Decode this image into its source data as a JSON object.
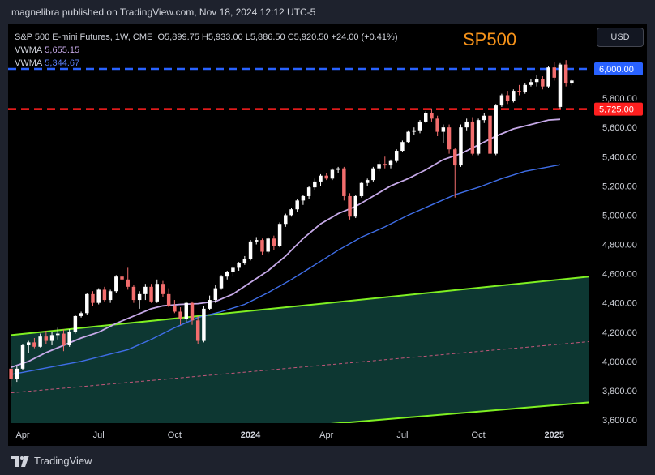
{
  "header": {
    "published": "magnelibra published on TradingView.com, Nov 18, 2024 12:12 UTC-5"
  },
  "legend": {
    "symbol_line": "S&P 500 E-mini Futures, 1W, CME",
    "ohlc": "O5,899.75  H5,933.00  L5,886.50  C5,920.50  +24.00 (+0.41%)",
    "vwma1_label": "VWMA",
    "vwma1_value": "5,655.15",
    "vwma2_label": "VWMA",
    "vwma2_value": "5,344.67"
  },
  "currency_button": "USD",
  "annotation": "SP500",
  "brand": "TradingView",
  "colors": {
    "up": "#ffffff",
    "down": "#f26d6d",
    "vwma_fast": "#c6a9e8",
    "vwma_slow": "#3f6ee8",
    "channel_line": "#7ff022",
    "channel_fill": "#0e3a35",
    "resistance": "#2962ff",
    "support": "#ff1f1f"
  },
  "chart_data": {
    "type": "candlestick",
    "title": "S&P 500 E-mini Futures, 1W, CME",
    "y_ticks": [
      3600,
      3800,
      4000,
      4200,
      4400,
      4600,
      4800,
      5000,
      5200,
      5400,
      5600,
      5800
    ],
    "y_tick_labels": [
      "3,600.00",
      "3,800.00",
      "4,000.00",
      "4,200.00",
      "4,400.00",
      "4,600.00",
      "4,800.00",
      "5,000.00",
      "5,200.00",
      "5,400.00",
      "5,600.00",
      "5,800.00"
    ],
    "ylim": [
      3590,
      6300
    ],
    "x_tick_labels": [
      "Apr",
      "Jul",
      "Oct",
      "2024",
      "Apr",
      "Jul",
      "Oct",
      "2025"
    ],
    "x_tick_weeks": [
      2,
      15,
      28,
      41,
      54,
      67,
      80,
      93
    ],
    "x_range_weeks": [
      -0.5,
      99
    ],
    "grid": false,
    "levels": [
      {
        "value": 6000,
        "label": "6,000.00",
        "color": "#2962ff"
      },
      {
        "value": 5725,
        "label": "5,725.00",
        "color": "#ff1f1f"
      }
    ],
    "channel": {
      "upper": [
        [
          0,
          4180
        ],
        [
          99,
          4580
        ]
      ],
      "middle": [
        [
          0,
          3785
        ],
        [
          99,
          4135
        ]
      ],
      "lower": [
        [
          0,
          3390
        ],
        [
          99,
          3720
        ]
      ]
    },
    "candles": [
      [
        3950,
        4010,
        3830,
        3880
      ],
      [
        3880,
        3970,
        3860,
        3950
      ],
      [
        3950,
        4120,
        3940,
        4110
      ],
      [
        4110,
        4140,
        4060,
        4130
      ],
      [
        4130,
        4160,
        4090,
        4100
      ],
      [
        4100,
        4190,
        4095,
        4170
      ],
      [
        4170,
        4210,
        4120,
        4140
      ],
      [
        4140,
        4200,
        4110,
        4180
      ],
      [
        4180,
        4230,
        4150,
        4190
      ],
      [
        4190,
        4220,
        4070,
        4110
      ],
      [
        4110,
        4220,
        4100,
        4200
      ],
      [
        4200,
        4320,
        4190,
        4310
      ],
      [
        4310,
        4340,
        4300,
        4330
      ],
      [
        4330,
        4470,
        4320,
        4460
      ],
      [
        4460,
        4480,
        4380,
        4400
      ],
      [
        4400,
        4500,
        4390,
        4490
      ],
      [
        4490,
        4510,
        4410,
        4420
      ],
      [
        4420,
        4490,
        4400,
        4480
      ],
      [
        4480,
        4590,
        4470,
        4580
      ],
      [
        4580,
        4630,
        4540,
        4560
      ],
      [
        4560,
        4640,
        4490,
        4510
      ],
      [
        4510,
        4520,
        4400,
        4420
      ],
      [
        4420,
        4480,
        4360,
        4460
      ],
      [
        4460,
        4530,
        4420,
        4510
      ],
      [
        4510,
        4530,
        4400,
        4410
      ],
      [
        4410,
        4560,
        4400,
        4530
      ],
      [
        4530,
        4550,
        4440,
        4460
      ],
      [
        4460,
        4500,
        4370,
        4380
      ],
      [
        4380,
        4420,
        4330,
        4340
      ],
      [
        4340,
        4370,
        4250,
        4290
      ],
      [
        4290,
        4410,
        4270,
        4400
      ],
      [
        4400,
        4410,
        4250,
        4280
      ],
      [
        4280,
        4310,
        4120,
        4140
      ],
      [
        4140,
        4380,
        4130,
        4360
      ],
      [
        4360,
        4450,
        4350,
        4420
      ],
      [
        4420,
        4520,
        4400,
        4500
      ],
      [
        4500,
        4590,
        4490,
        4580
      ],
      [
        4580,
        4620,
        4560,
        4610
      ],
      [
        4610,
        4650,
        4580,
        4640
      ],
      [
        4640,
        4680,
        4620,
        4670
      ],
      [
        4670,
        4720,
        4660,
        4700
      ],
      [
        4700,
        4830,
        4690,
        4820
      ],
      [
        4820,
        4850,
        4800,
        4830
      ],
      [
        4830,
        4840,
        4730,
        4750
      ],
      [
        4750,
        4850,
        4740,
        4840
      ],
      [
        4840,
        4860,
        4760,
        4790
      ],
      [
        4790,
        4950,
        4780,
        4940
      ],
      [
        4940,
        5010,
        4920,
        5000
      ],
      [
        5000,
        5050,
        4990,
        5040
      ],
      [
        5040,
        5110,
        5020,
        5100
      ],
      [
        5100,
        5140,
        5070,
        5130
      ],
      [
        5130,
        5200,
        5110,
        5190
      ],
      [
        5190,
        5250,
        5170,
        5230
      ],
      [
        5230,
        5280,
        5200,
        5270
      ],
      [
        5270,
        5290,
        5240,
        5250
      ],
      [
        5250,
        5320,
        5240,
        5310
      ],
      [
        5310,
        5330,
        5290,
        5320
      ],
      [
        5320,
        5330,
        5100,
        5130
      ],
      [
        5130,
        5150,
        4970,
        4990
      ],
      [
        4990,
        5140,
        4980,
        5130
      ],
      [
        5130,
        5230,
        5120,
        5220
      ],
      [
        5220,
        5250,
        5200,
        5240
      ],
      [
        5240,
        5330,
        5230,
        5320
      ],
      [
        5320,
        5370,
        5300,
        5350
      ],
      [
        5350,
        5400,
        5320,
        5340
      ],
      [
        5340,
        5380,
        5320,
        5370
      ],
      [
        5370,
        5450,
        5360,
        5440
      ],
      [
        5440,
        5510,
        5430,
        5500
      ],
      [
        5500,
        5580,
        5490,
        5570
      ],
      [
        5570,
        5600,
        5550,
        5580
      ],
      [
        5580,
        5650,
        5560,
        5640
      ],
      [
        5640,
        5710,
        5630,
        5700
      ],
      [
        5700,
        5730,
        5640,
        5660
      ],
      [
        5660,
        5680,
        5540,
        5570
      ],
      [
        5570,
        5620,
        5490,
        5600
      ],
      [
        5600,
        5620,
        5420,
        5450
      ],
      [
        5450,
        5460,
        5120,
        5340
      ],
      [
        5340,
        5620,
        5330,
        5600
      ],
      [
        5600,
        5660,
        5580,
        5640
      ],
      [
        5640,
        5670,
        5410,
        5420
      ],
      [
        5420,
        5660,
        5410,
        5650
      ],
      [
        5650,
        5700,
        5630,
        5680
      ],
      [
        5680,
        5700,
        5400,
        5420
      ],
      [
        5420,
        5760,
        5410,
        5750
      ],
      [
        5750,
        5830,
        5740,
        5820
      ],
      [
        5820,
        5850,
        5760,
        5780
      ],
      [
        5780,
        5860,
        5770,
        5850
      ],
      [
        5850,
        5890,
        5820,
        5840
      ],
      [
        5840,
        5900,
        5830,
        5890
      ],
      [
        5890,
        5930,
        5880,
        5910
      ],
      [
        5910,
        5960,
        5880,
        5930
      ],
      [
        5930,
        5950,
        5860,
        5880
      ],
      [
        5880,
        6020,
        5870,
        6010
      ],
      [
        6010,
        6050,
        5920,
        5940
      ],
      [
        5740,
        6040,
        5730,
        6030
      ],
      [
        6030,
        6060,
        5880,
        5900
      ],
      [
        5900,
        5933,
        5886.5,
        5920.5
      ]
    ],
    "vwma_fast": [
      [
        0,
        3960
      ],
      [
        3,
        4000
      ],
      [
        6,
        4060
      ],
      [
        9,
        4110
      ],
      [
        12,
        4160
      ],
      [
        15,
        4200
      ],
      [
        18,
        4260
      ],
      [
        21,
        4310
      ],
      [
        24,
        4360
      ],
      [
        26,
        4380
      ],
      [
        29,
        4390
      ],
      [
        32,
        4395
      ],
      [
        35,
        4410
      ],
      [
        38,
        4460
      ],
      [
        41,
        4540
      ],
      [
        44,
        4620
      ],
      [
        47,
        4720
      ],
      [
        50,
        4840
      ],
      [
        53,
        4940
      ],
      [
        56,
        5010
      ],
      [
        59,
        5060
      ],
      [
        62,
        5130
      ],
      [
        65,
        5200
      ],
      [
        68,
        5250
      ],
      [
        71,
        5310
      ],
      [
        74,
        5380
      ],
      [
        77,
        5420
      ],
      [
        80,
        5480
      ],
      [
        83,
        5540
      ],
      [
        86,
        5590
      ],
      [
        89,
        5620
      ],
      [
        92,
        5650
      ],
      [
        94,
        5655
      ]
    ],
    "vwma_slow": [
      [
        0,
        3910
      ],
      [
        4,
        3940
      ],
      [
        8,
        3970
      ],
      [
        12,
        4000
      ],
      [
        16,
        4040
      ],
      [
        20,
        4080
      ],
      [
        24,
        4150
      ],
      [
        28,
        4230
      ],
      [
        32,
        4300
      ],
      [
        36,
        4340
      ],
      [
        40,
        4390
      ],
      [
        44,
        4470
      ],
      [
        48,
        4560
      ],
      [
        52,
        4660
      ],
      [
        56,
        4760
      ],
      [
        60,
        4850
      ],
      [
        64,
        4920
      ],
      [
        68,
        5000
      ],
      [
        72,
        5070
      ],
      [
        76,
        5140
      ],
      [
        80,
        5190
      ],
      [
        84,
        5250
      ],
      [
        88,
        5300
      ],
      [
        92,
        5330
      ],
      [
        94,
        5345
      ]
    ]
  }
}
